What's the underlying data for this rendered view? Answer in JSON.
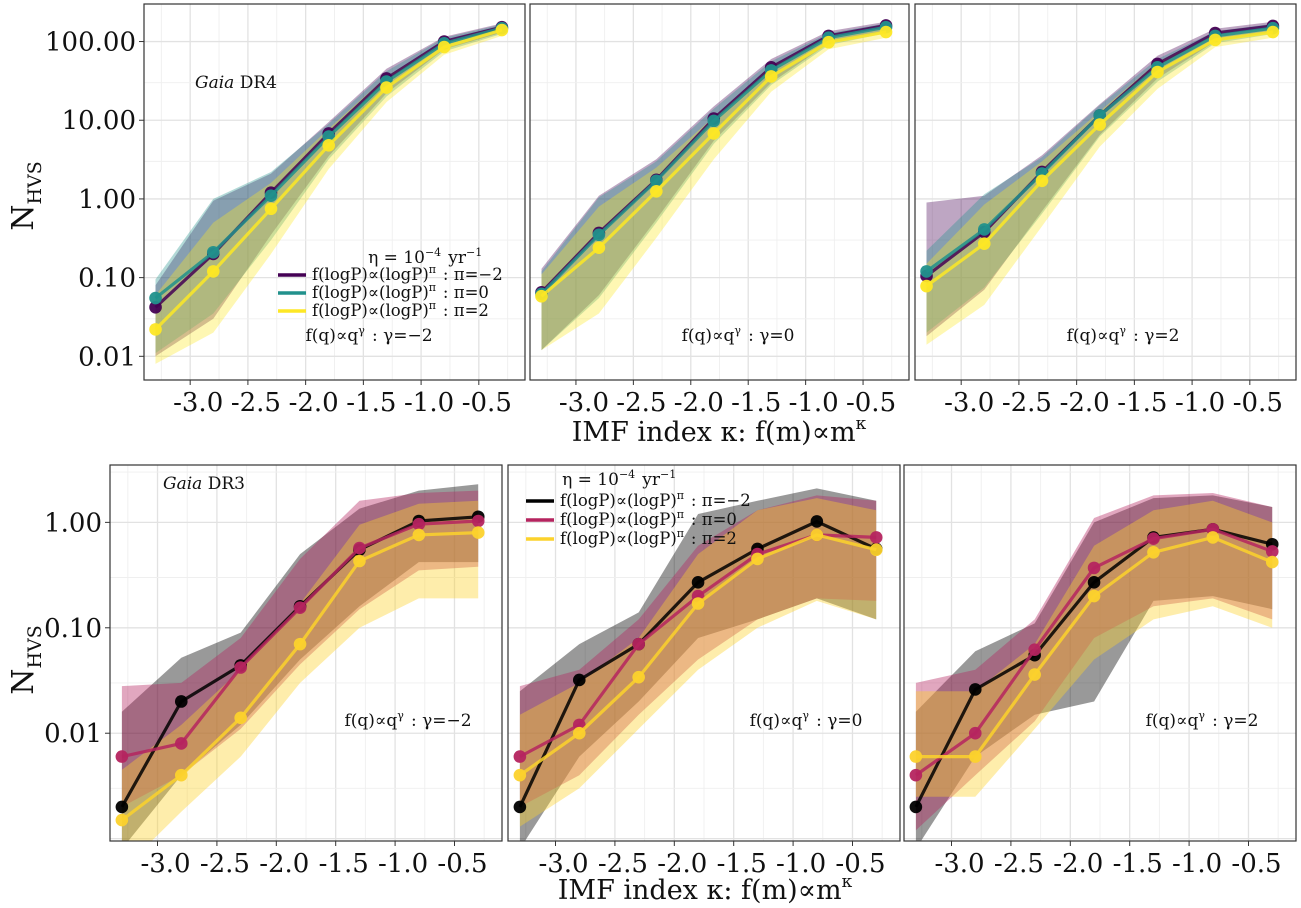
{
  "figure": {
    "top_row_ylabel": "N",
    "top_row_ylabel_sub": "HVS",
    "bottom_row_ylabel": "N",
    "bottom_row_ylabel_sub": "HVS",
    "top_xlabel": "IMF index κ: f(m)∝m",
    "top_xlabel_sup": "κ",
    "bottom_xlabel": "IMF index κ: f(m)∝m",
    "bottom_xlabel_sup": "κ"
  },
  "chart_data": [
    {
      "type": "line",
      "row": "top",
      "panel_index": 0,
      "survey_label": {
        "italic": "Gaia",
        "rest": " DR4"
      },
      "annotation": "f(q)∝q^γ : γ=−2",
      "show_legend": true,
      "legend_title": "η = 10^−4 yr^−1",
      "yscale": "log",
      "ylim": [
        0.005,
        300
      ],
      "yticks": [
        0.01,
        0.1,
        1,
        10,
        100
      ],
      "ytick_labels": [
        "0.01",
        "0.10",
        "1.00",
        "10.00",
        "100.00"
      ],
      "xlim": [
        -3.4,
        -0.1
      ],
      "xticks": [
        -3.0,
        -2.5,
        -2.0,
        -1.5,
        -1.0,
        -0.5
      ],
      "xtick_labels": [
        "-3.0",
        "-2.5",
        "-2.0",
        "-1.5",
        "-1.0",
        "-0.5"
      ],
      "x": [
        -3.3,
        -2.8,
        -2.3,
        -1.8,
        -1.3,
        -0.8,
        -0.3
      ],
      "series": [
        {
          "name": "f(logP)∝(logP)^π : π=−2",
          "color": "#440154",
          "values": [
            0.042,
            0.2,
            1.2,
            6.8,
            34,
            100,
            152
          ],
          "band_low": [
            0.01,
            0.03,
            0.35,
            3.5,
            22,
            80,
            130
          ],
          "band_high": [
            0.08,
            0.95,
            2.1,
            9.5,
            45,
            115,
            170
          ]
        },
        {
          "name": "f(logP)∝(logP)^π : π=0",
          "color": "#21918c",
          "values": [
            0.055,
            0.21,
            1.1,
            6.2,
            31,
            95,
            148
          ],
          "band_low": [
            0.011,
            0.035,
            0.3,
            3.2,
            20,
            75,
            125
          ],
          "band_high": [
            0.095,
            1.0,
            2.2,
            9.0,
            42,
            112,
            165
          ]
        },
        {
          "name": "f(logP)∝(logP)^π : π=2",
          "color": "#fde725",
          "values": [
            0.022,
            0.12,
            0.75,
            4.8,
            26,
            85,
            140
          ],
          "band_low": [
            0.008,
            0.02,
            0.2,
            2.4,
            17,
            68,
            118
          ],
          "band_high": [
            0.06,
            0.5,
            1.6,
            7.8,
            36,
            100,
            158
          ]
        }
      ]
    },
    {
      "type": "line",
      "row": "top",
      "panel_index": 1,
      "annotation": "f(q)∝q^γ : γ=0",
      "yscale": "log",
      "ylim": [
        0.005,
        300
      ],
      "xlim": [
        -3.4,
        -0.1
      ],
      "xticks": [
        -3.0,
        -2.5,
        -2.0,
        -1.5,
        -1.0,
        -0.5
      ],
      "xtick_labels": [
        "-3.0",
        "-2.5",
        "-2.0",
        "-1.5",
        "-1.0",
        "-0.5"
      ],
      "x": [
        -3.3,
        -2.8,
        -2.3,
        -1.8,
        -1.3,
        -0.8,
        -0.3
      ],
      "series": [
        {
          "name": "f(logP)∝(logP)^π : π=−2",
          "color": "#440154",
          "values": [
            0.065,
            0.37,
            1.75,
            10.5,
            47,
            118,
            160
          ],
          "band_low": [
            0.012,
            0.06,
            0.55,
            5.5,
            30,
            95,
            135
          ],
          "band_high": [
            0.13,
            1.1,
            3.2,
            15,
            60,
            135,
            178
          ]
        },
        {
          "name": "f(logP)∝(logP)^π : π=0",
          "color": "#21918c",
          "values": [
            0.062,
            0.35,
            1.7,
            9.8,
            43,
            112,
            152
          ],
          "band_low": [
            0.012,
            0.055,
            0.5,
            5.0,
            28,
            90,
            128
          ],
          "band_high": [
            0.12,
            1.05,
            3.0,
            14,
            56,
            128,
            170
          ]
        },
        {
          "name": "f(logP)∝(logP)^π : π=2",
          "color": "#fde725",
          "values": [
            0.058,
            0.24,
            1.25,
            6.8,
            36,
            98,
            132
          ],
          "band_low": [
            0.012,
            0.035,
            0.32,
            3.2,
            23,
            80,
            112
          ],
          "band_high": [
            0.11,
            0.8,
            2.5,
            11,
            48,
            115,
            150
          ]
        }
      ]
    },
    {
      "type": "line",
      "row": "top",
      "panel_index": 2,
      "annotation": "f(q)∝q^γ : γ=2",
      "yscale": "log",
      "ylim": [
        0.005,
        300
      ],
      "xlim": [
        -3.4,
        -0.1
      ],
      "xticks": [
        -3.0,
        -2.5,
        -2.0,
        -1.5,
        -1.0,
        -0.5
      ],
      "xtick_labels": [
        "-3.0",
        "-2.5",
        "-2.0",
        "-1.5",
        "-1.0",
        "-0.5"
      ],
      "x": [
        -3.3,
        -2.8,
        -2.3,
        -1.8,
        -1.3,
        -0.8,
        -0.3
      ],
      "series": [
        {
          "name": "f(logP)∝(logP)^π : π=−2",
          "color": "#440154",
          "values": [
            0.105,
            0.38,
            2.2,
            11.5,
            52,
            128,
            158
          ],
          "band_low": [
            0.018,
            0.07,
            0.7,
            6.5,
            34,
            100,
            132
          ],
          "band_high": [
            0.9,
            1.1,
            3.6,
            16,
            66,
            145,
            178
          ]
        },
        {
          "name": "f(logP)∝(logP)^π : π=0",
          "color": "#21918c",
          "values": [
            0.12,
            0.41,
            2.1,
            11.5,
            47,
            118,
            148
          ],
          "band_low": [
            0.02,
            0.075,
            0.65,
            6.2,
            31,
            95,
            125
          ],
          "band_high": [
            0.22,
            1.15,
            3.4,
            15.5,
            60,
            135,
            168
          ]
        },
        {
          "name": "f(logP)∝(logP)^π : π=2",
          "color": "#fde725",
          "values": [
            0.078,
            0.27,
            1.7,
            8.8,
            41,
            105,
            132
          ],
          "band_low": [
            0.014,
            0.045,
            0.45,
            4.6,
            25,
            85,
            112
          ],
          "band_high": [
            0.15,
            0.85,
            3.0,
            13,
            55,
            122,
            150
          ]
        }
      ]
    },
    {
      "type": "line",
      "row": "bottom",
      "panel_index": 0,
      "survey_label": {
        "italic": "Gaia",
        "rest": " DR3"
      },
      "annotation": "f(q)∝q^γ : γ=−2",
      "yscale": "log",
      "ylim": [
        0.00095,
        3.5
      ],
      "yticks": [
        0.01,
        0.1,
        1
      ],
      "ytick_labels": [
        "0.01",
        "0.10",
        "1.00"
      ],
      "xlim": [
        -3.4,
        -0.1
      ],
      "xticks": [
        -3.0,
        -2.5,
        -2.0,
        -1.5,
        -1.0,
        -0.5
      ],
      "xtick_labels": [
        "-3.0",
        "-2.5",
        "-2.0",
        "-1.5",
        "-1.0",
        "-0.5"
      ],
      "x": [
        -3.3,
        -2.8,
        -2.3,
        -1.8,
        -1.3,
        -0.8,
        -0.3
      ],
      "series": [
        {
          "name": "f(logP)∝(logP)^π : π=−2",
          "color": "#000000",
          "values": [
            0.002,
            0.02,
            0.044,
            0.16,
            0.55,
            1.03,
            1.13
          ],
          "band_low": [
            0.0008,
            0.004,
            0.012,
            0.05,
            0.16,
            0.42,
            0.42
          ],
          "band_high": [
            0.016,
            0.052,
            0.09,
            0.5,
            1.35,
            2.0,
            2.3
          ]
        },
        {
          "name": "f(logP)∝(logP)^π : π=0",
          "color": "#b5245f",
          "values": [
            0.006,
            0.008,
            0.042,
            0.155,
            0.57,
            0.96,
            1.03
          ],
          "band_low": [
            0.002,
            0.004,
            0.011,
            0.045,
            0.15,
            0.35,
            0.38
          ],
          "band_high": [
            0.028,
            0.03,
            0.08,
            0.45,
            1.6,
            1.9,
            2.0
          ]
        },
        {
          "name": "f(logP)∝(logP)^π : π=2",
          "color": "#fcd22c",
          "values": [
            0.0015,
            0.004,
            0.014,
            0.07,
            0.43,
            0.76,
            0.8
          ],
          "band_low": [
            0.0005,
            0.0018,
            0.006,
            0.03,
            0.1,
            0.19,
            0.19
          ],
          "band_high": [
            0.0045,
            0.012,
            0.04,
            0.17,
            0.95,
            1.5,
            1.6
          ]
        }
      ]
    },
    {
      "type": "line",
      "row": "bottom",
      "panel_index": 1,
      "annotation": "f(q)∝q^γ : γ=0",
      "show_legend": true,
      "legend_title": "η = 10^−4 yr^−1",
      "yscale": "log",
      "ylim": [
        0.00095,
        3.5
      ],
      "xlim": [
        -3.4,
        -0.1
      ],
      "xticks": [
        -3.0,
        -2.5,
        -2.0,
        -1.5,
        -1.0,
        -0.5
      ],
      "xtick_labels": [
        "-3.0",
        "-2.5",
        "-2.0",
        "-1.5",
        "-1.0",
        "-0.5"
      ],
      "x": [
        -3.3,
        -2.8,
        -2.3,
        -1.8,
        -1.3,
        -0.8,
        -0.3
      ],
      "series": [
        {
          "name": "f(logP)∝(logP)^π : π=−2",
          "color": "#000000",
          "values": [
            0.002,
            0.032,
            0.07,
            0.27,
            0.56,
            1.02,
            0.56
          ],
          "band_low": [
            0.0008,
            0.006,
            0.02,
            0.08,
            0.12,
            0.19,
            0.12
          ],
          "band_high": [
            0.025,
            0.07,
            0.14,
            1.2,
            1.6,
            2.1,
            1.6
          ]
        },
        {
          "name": "f(logP)∝(logP)^π : π=0",
          "color": "#b5245f",
          "values": [
            0.006,
            0.012,
            0.07,
            0.2,
            0.5,
            0.76,
            0.72
          ],
          "band_low": [
            0.002,
            0.004,
            0.015,
            0.05,
            0.12,
            0.19,
            0.18
          ],
          "band_high": [
            0.028,
            0.04,
            0.12,
            0.6,
            1.3,
            1.8,
            1.6
          ]
        },
        {
          "name": "f(logP)∝(logP)^π : π=2",
          "color": "#fcd22c",
          "values": [
            0.004,
            0.01,
            0.034,
            0.17,
            0.45,
            0.76,
            0.55
          ],
          "band_low": [
            0.0013,
            0.003,
            0.011,
            0.04,
            0.1,
            0.18,
            0.12
          ],
          "band_high": [
            0.015,
            0.03,
            0.08,
            0.5,
            1.3,
            1.7,
            1.3
          ]
        }
      ]
    },
    {
      "type": "line",
      "row": "bottom",
      "panel_index": 2,
      "annotation": "f(q)∝q^γ : γ=2",
      "yscale": "log",
      "ylim": [
        0.00095,
        3.5
      ],
      "xlim": [
        -3.4,
        -0.1
      ],
      "xticks": [
        -3.0,
        -2.5,
        -2.0,
        -1.5,
        -1.0,
        -0.5
      ],
      "xtick_labels": [
        "-3.0",
        "-2.5",
        "-2.0",
        "-1.5",
        "-1.0",
        "-0.5"
      ],
      "x": [
        -3.3,
        -2.8,
        -2.3,
        -1.8,
        -1.3,
        -0.8,
        -0.3
      ],
      "series": [
        {
          "name": "f(logP)∝(logP)^π : π=−2",
          "color": "#000000",
          "values": [
            0.002,
            0.026,
            0.055,
            0.27,
            0.72,
            0.86,
            0.62
          ],
          "band_low": [
            0.0008,
            0.006,
            0.015,
            0.02,
            0.18,
            0.2,
            0.15
          ],
          "band_high": [
            0.016,
            0.06,
            0.11,
            1.0,
            1.7,
            1.8,
            1.4
          ]
        },
        {
          "name": "f(logP)∝(logP)^π : π=0",
          "color": "#b5245f",
          "values": [
            0.004,
            0.01,
            0.062,
            0.37,
            0.7,
            0.86,
            0.53
          ],
          "band_low": [
            0.0012,
            0.004,
            0.013,
            0.08,
            0.16,
            0.19,
            0.12
          ],
          "band_high": [
            0.03,
            0.04,
            0.12,
            1.1,
            1.8,
            1.9,
            1.4
          ]
        },
        {
          "name": "f(logP)∝(logP)^π : π=2",
          "color": "#fcd22c",
          "values": [
            0.006,
            0.006,
            0.036,
            0.2,
            0.52,
            0.72,
            0.42
          ],
          "band_low": [
            0.0025,
            0.0025,
            0.011,
            0.05,
            0.12,
            0.16,
            0.1
          ],
          "band_high": [
            0.025,
            0.025,
            0.07,
            0.6,
            1.3,
            1.6,
            1.0
          ]
        }
      ]
    }
  ]
}
